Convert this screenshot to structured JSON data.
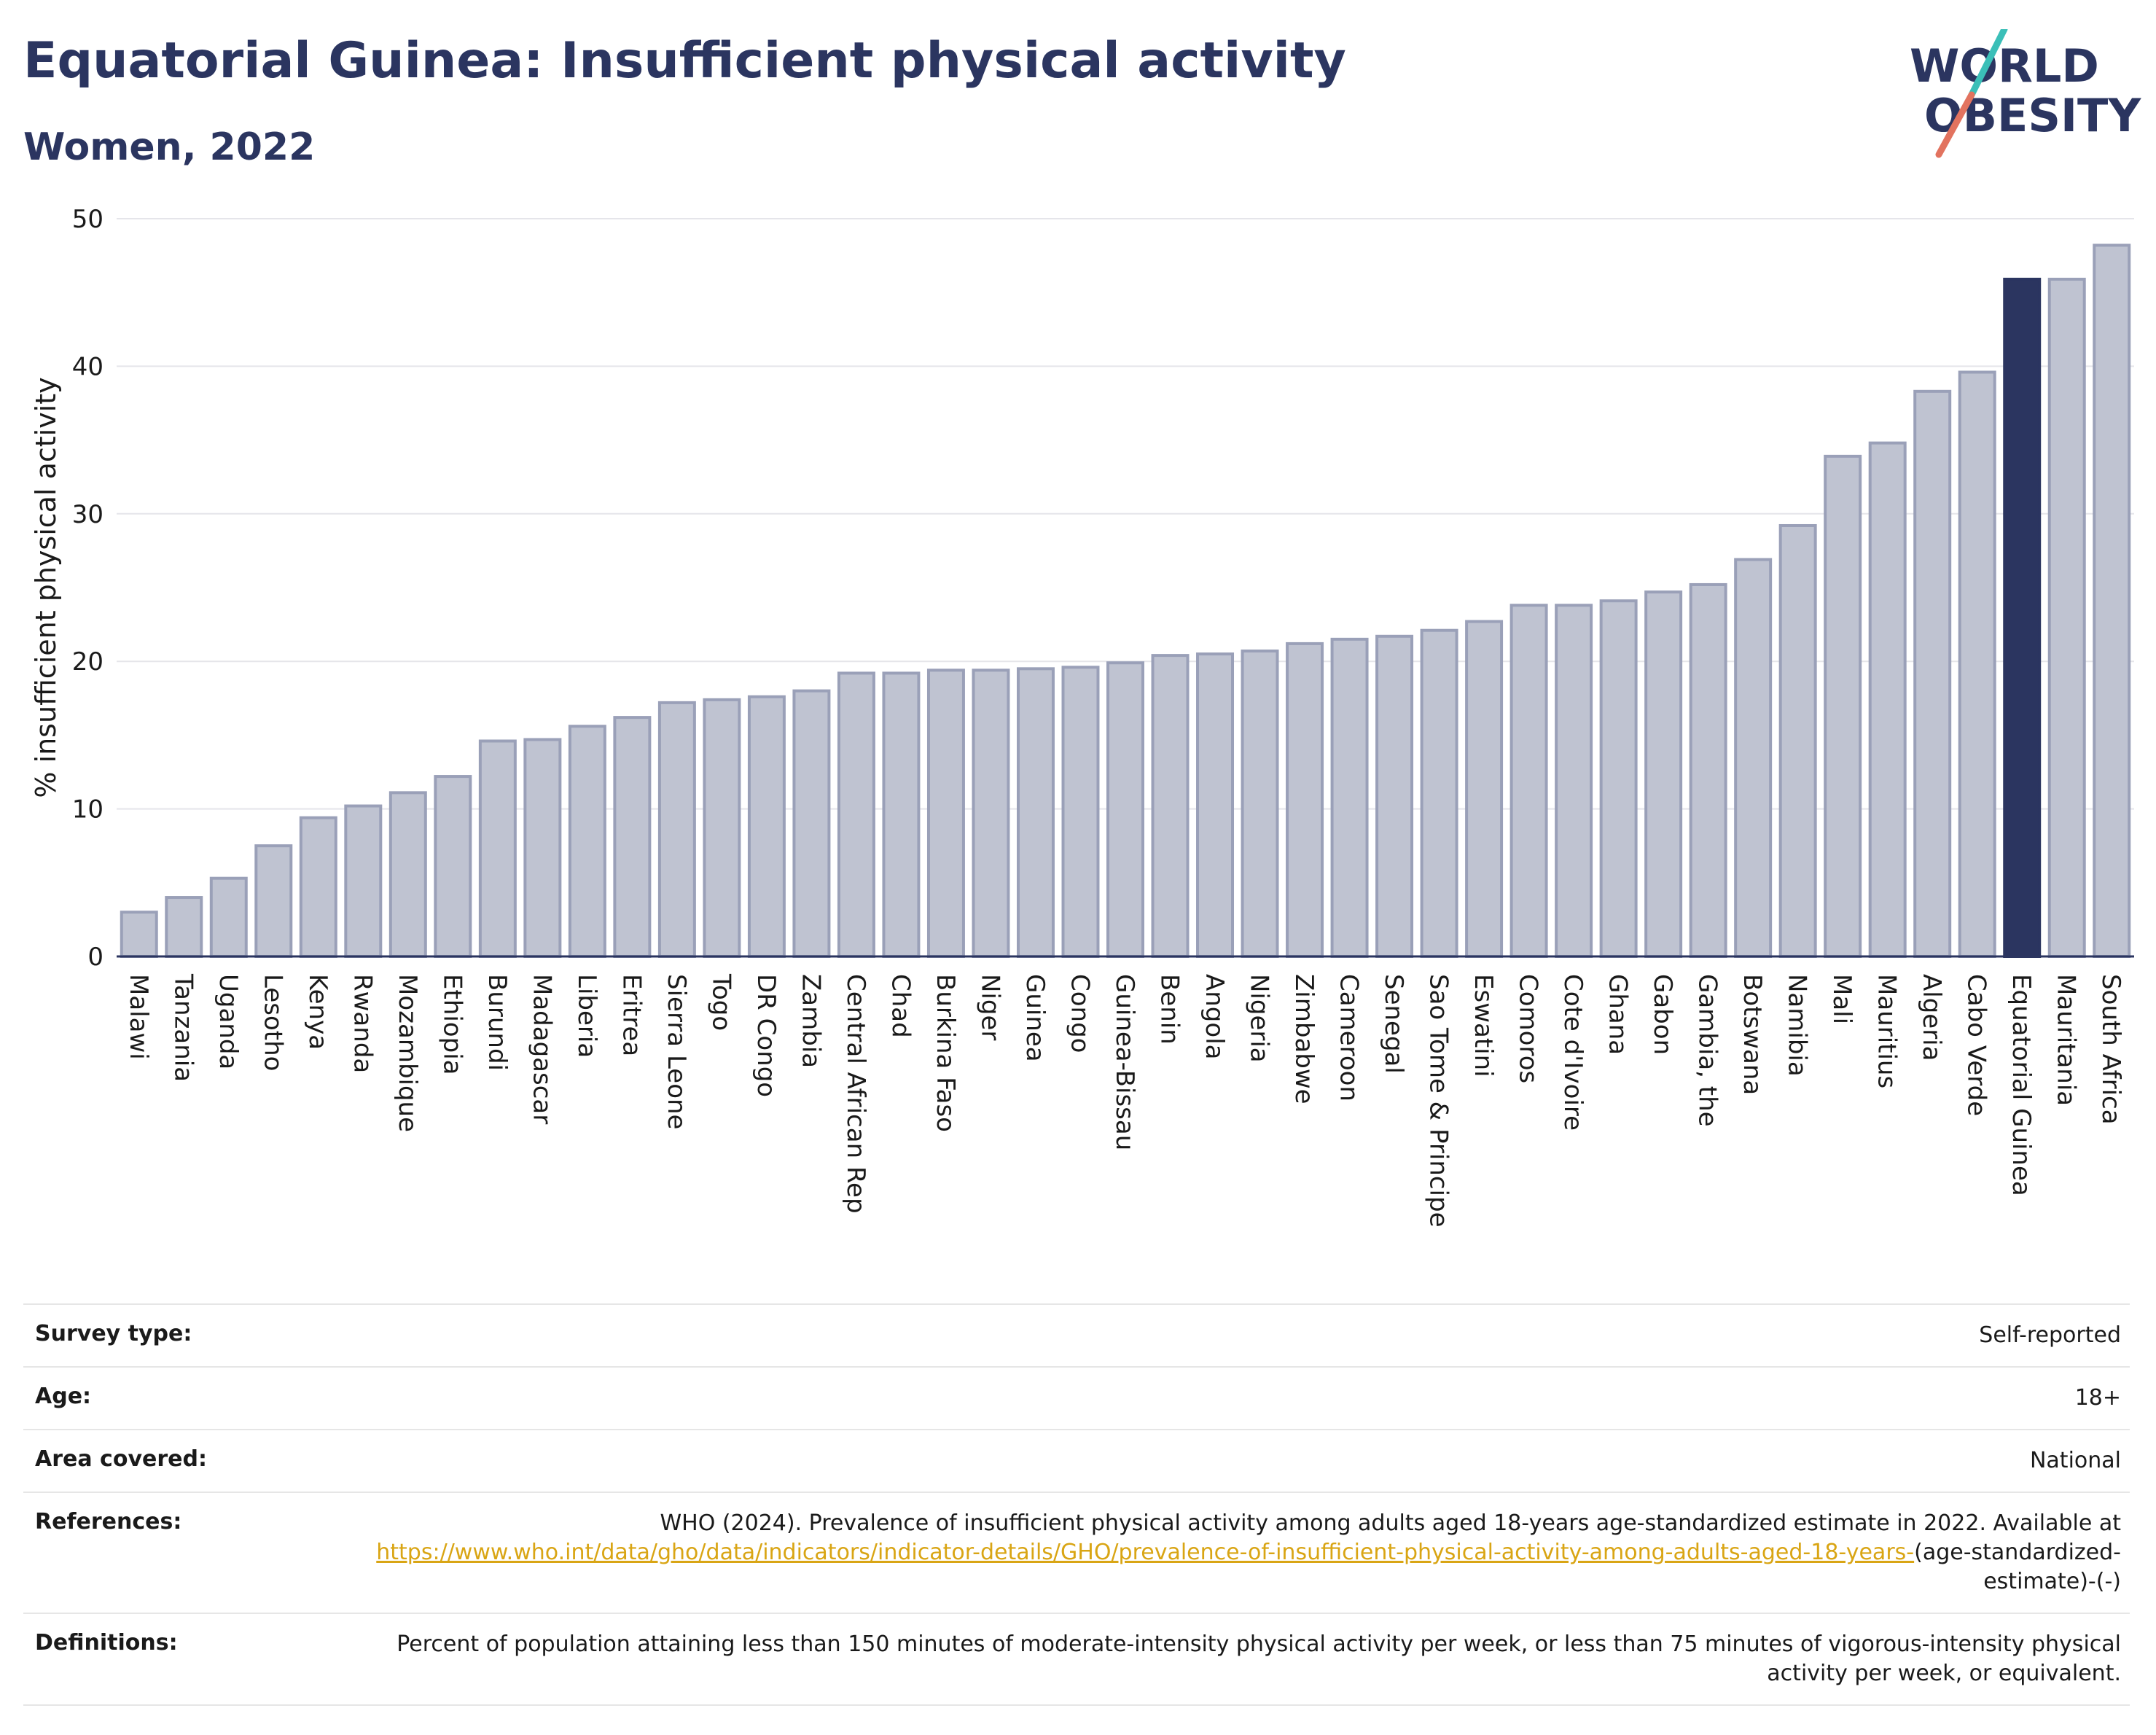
{
  "header": {
    "title": "Equatorial Guinea: Insufficient physical activity",
    "subtitle": "Women, 2022",
    "logo_line1": "WORLD",
    "logo_line2": "OBESITY"
  },
  "colors": {
    "bar": "#bfc3d1",
    "bar_border": "#9aa0b8",
    "highlight": "#2b3560",
    "title": "#2b3560",
    "link": "#d9a514",
    "logo_teal": "#3bbfb8",
    "logo_coral": "#e2735f"
  },
  "chart_data": {
    "type": "bar",
    "ylabel": "% insufficient physical activity",
    "ylim": [
      0,
      50
    ],
    "yticks": [
      0,
      10,
      20,
      30,
      40,
      50
    ],
    "highlight": "Equatorial Guinea",
    "grid": true,
    "categories": [
      "Malawi",
      "Tanzania",
      "Uganda",
      "Lesotho",
      "Kenya",
      "Rwanda",
      "Mozambique",
      "Ethiopia",
      "Burundi",
      "Madagascar",
      "Liberia",
      "Eritrea",
      "Sierra Leone",
      "Togo",
      "DR Congo",
      "Zambia",
      "Central African Rep",
      "Chad",
      "Burkina Faso",
      "Niger",
      "Guinea",
      "Congo",
      "Guinea-Bissau",
      "Benin",
      "Angola",
      "Nigeria",
      "Zimbabwe",
      "Cameroon",
      "Senegal",
      "Sao Tome & Principe",
      "Eswatini",
      "Comoros",
      "Cote d'Ivoire",
      "Ghana",
      "Gabon",
      "Gambia, the",
      "Botswana",
      "Namibia",
      "Mali",
      "Mauritius",
      "Algeria",
      "Cabo Verde",
      "Equatorial Guinea",
      "Mauritania",
      "South Africa"
    ],
    "values": [
      3.0,
      4.0,
      5.3,
      7.5,
      9.4,
      10.2,
      11.1,
      12.2,
      14.6,
      14.7,
      15.6,
      16.2,
      17.2,
      17.4,
      17.6,
      18.0,
      19.2,
      19.2,
      19.4,
      19.4,
      19.5,
      19.6,
      19.9,
      20.4,
      20.5,
      20.7,
      21.2,
      21.5,
      21.7,
      22.1,
      22.7,
      23.8,
      23.8,
      24.1,
      24.7,
      25.2,
      26.9,
      29.2,
      33.9,
      34.8,
      38.3,
      39.6,
      45.9,
      45.9,
      48.2
    ]
  },
  "info": [
    {
      "label": "Survey type:",
      "value": "Self-reported"
    },
    {
      "label": "Age:",
      "value": "18+"
    },
    {
      "label": "Area covered:",
      "value": "National"
    },
    {
      "label": "References:",
      "value": "WHO (2024). Prevalence of insufficient physical activity among adults aged 18-years age-standardized estimate in 2022. Available at",
      "link": "https://www.who.int/data/gho/data/indicators/indicator-details/GHO/prevalence-of-insufficient-physical-activity-among-adults-aged-18-years-",
      "suffix": "(age-standardized-estimate)-(-)"
    },
    {
      "label": "Definitions:",
      "value": "Percent of population attaining less than 150 minutes of moderate-intensity physical activity per week, or less than 75 minutes of vigorous-intensity physical activity per week, or equivalent."
    }
  ]
}
